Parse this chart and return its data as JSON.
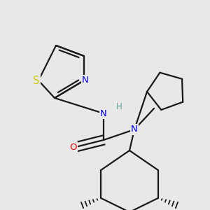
{
  "bg_color": "#e8e8e8",
  "bond_color": "#1a1a1a",
  "bond_lw": 1.6,
  "dbo": 0.018,
  "atom_colors": {
    "N": "#0000ee",
    "O": "#ee0000",
    "S": "#cccc00",
    "H": "#5f9ea0",
    "C": "#1a1a1a"
  },
  "fs": 9.5,
  "figsize": [
    3.0,
    3.0
  ],
  "dpi": 100
}
